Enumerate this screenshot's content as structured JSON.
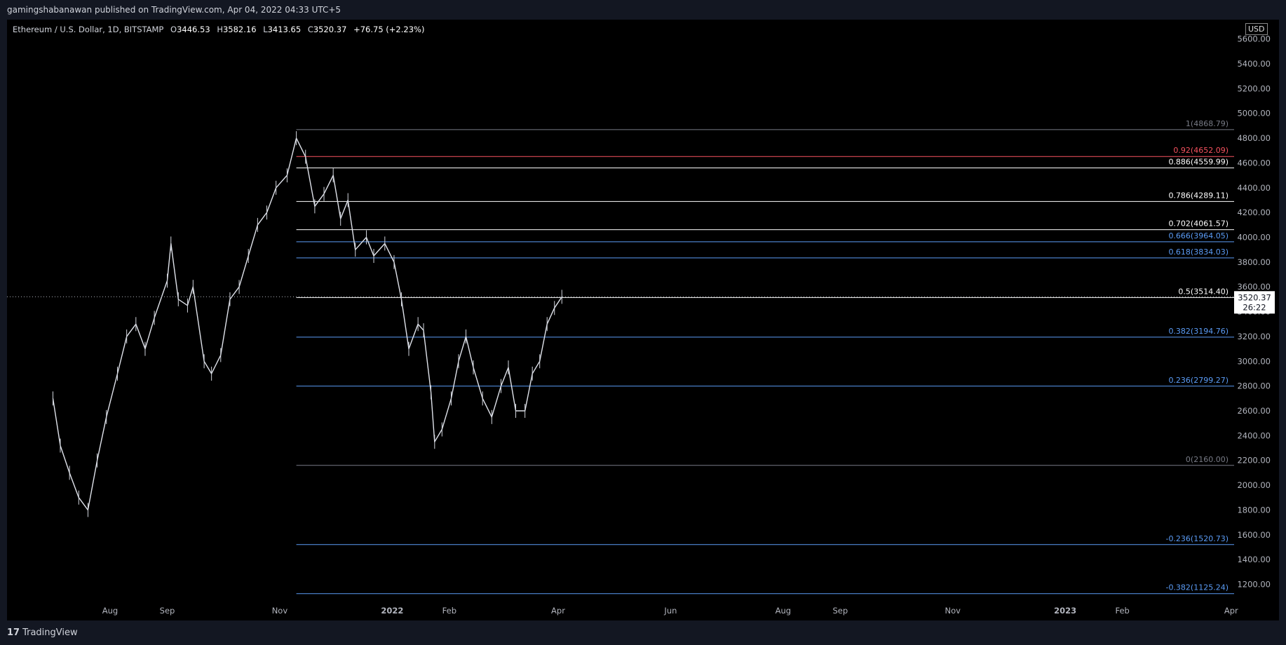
{
  "header": {
    "published": "gamingshabanawan published on TradingView.com, Apr 04, 2022 04:33 UTC+5"
  },
  "legend": {
    "symbol": "Ethereum / U.S. Dollar, 1D, BITSTAMP",
    "open_label": "O",
    "open": "3446.53",
    "high_label": "H",
    "high": "3582.16",
    "low_label": "L",
    "low": "3413.65",
    "close_label": "C",
    "close": "3520.37",
    "change": "+76.75 (+2.23%)"
  },
  "currency_button": "USD",
  "footer": {
    "logo_mark": "17",
    "brand": "TradingView"
  },
  "chart_data": {
    "type": "line",
    "price_axis": {
      "ylim": [
        1050,
        5700
      ],
      "ticks": [
        "1200.00",
        "1400.00",
        "1600.00",
        "1800.00",
        "2000.00",
        "2200.00",
        "2400.00",
        "2600.00",
        "2800.00",
        "3000.00",
        "3200.00",
        "3400.00",
        "3600.00",
        "3800.00",
        "4000.00",
        "4200.00",
        "4400.00",
        "4600.00",
        "4800.00",
        "5000.00",
        "5200.00",
        "5400.00",
        "5600.00"
      ]
    },
    "time_axis": {
      "ticks": [
        {
          "label": "Aug",
          "x": "2021-08-01"
        },
        {
          "label": "Sep",
          "x": "2021-09-01"
        },
        {
          "label": "Nov",
          "x": "2021-11-01"
        },
        {
          "label": "2022",
          "x": "2022-01-01"
        },
        {
          "label": "Feb",
          "x": "2022-02-01"
        },
        {
          "label": "Apr",
          "x": "2022-04-01"
        },
        {
          "label": "Jun",
          "x": "2022-06-01"
        },
        {
          "label": "Aug",
          "x": "2022-08-01"
        },
        {
          "label": "Sep",
          "x": "2022-09-01"
        },
        {
          "label": "Nov",
          "x": "2022-11-01"
        },
        {
          "label": "2023",
          "x": "2023-01-01"
        },
        {
          "label": "Feb",
          "x": "2023-02-01"
        },
        {
          "label": "Apr",
          "x": "2023-04-01"
        }
      ]
    },
    "fib_start": "2021-11-10",
    "fib_levels": [
      {
        "label": "1(4868.79)",
        "ratio": 1,
        "price": 4868.79,
        "color": "#787b86"
      },
      {
        "label": "0.92(4652.09)",
        "ratio": 0.92,
        "price": 4652.09,
        "color": "#f7525f"
      },
      {
        "label": "0.886(4559.99)",
        "ratio": 0.886,
        "price": 4559.99,
        "color": "#ffffff"
      },
      {
        "label": "0.786(4289.11)",
        "ratio": 0.786,
        "price": 4289.11,
        "color": "#ffffff"
      },
      {
        "label": "0.702(4061.57)",
        "ratio": 0.702,
        "price": 4061.57,
        "color": "#ffffff"
      },
      {
        "label": "0.666(3964.05)",
        "ratio": 0.666,
        "price": 3964.05,
        "color": "#5b9cf6"
      },
      {
        "label": "0.618(3834.03)",
        "ratio": 0.618,
        "price": 3834.03,
        "color": "#5b9cf6"
      },
      {
        "label": "0.5(3514.40)",
        "ratio": 0.5,
        "price": 3514.4,
        "color": "#ffffff"
      },
      {
        "label": "0.382(3194.76)",
        "ratio": 0.382,
        "price": 3194.76,
        "color": "#5b9cf6"
      },
      {
        "label": "0.236(2799.27)",
        "ratio": 0.236,
        "price": 2799.27,
        "color": "#5b9cf6"
      },
      {
        "label": "0(2160.00)",
        "ratio": 0,
        "price": 2160.0,
        "color": "#787b86"
      },
      {
        "label": "-0.236(1520.73)",
        "ratio": -0.236,
        "price": 1520.73,
        "color": "#5b9cf6"
      },
      {
        "label": "-0.382(1125.24)",
        "ratio": -0.382,
        "price": 1125.24,
        "color": "#5b9cf6"
      }
    ],
    "last_price": {
      "value": 3520.37,
      "label": "3520.37",
      "countdown": "26:22"
    },
    "series": [
      {
        "x": [
          "2021-07-01",
          "2021-07-05",
          "2021-07-10",
          "2021-07-15",
          "2021-07-20",
          "2021-07-25",
          "2021-07-30",
          "2021-08-05",
          "2021-08-10",
          "2021-08-15",
          "2021-08-20",
          "2021-08-25",
          "2021-09-01",
          "2021-09-03",
          "2021-09-07",
          "2021-09-12",
          "2021-09-15",
          "2021-09-21",
          "2021-09-25",
          "2021-09-30",
          "2021-10-05",
          "2021-10-10",
          "2021-10-15",
          "2021-10-20",
          "2021-10-25",
          "2021-10-30",
          "2021-11-05",
          "2021-11-10",
          "2021-11-15",
          "2021-11-20",
          "2021-11-25",
          "2021-11-30",
          "2021-12-04",
          "2021-12-08",
          "2021-12-12",
          "2021-12-18",
          "2021-12-22",
          "2021-12-28",
          "2022-01-02",
          "2022-01-06",
          "2022-01-10",
          "2022-01-15",
          "2022-01-18",
          "2022-01-22",
          "2022-01-24",
          "2022-01-28",
          "2022-02-02",
          "2022-02-06",
          "2022-02-10",
          "2022-02-14",
          "2022-02-19",
          "2022-02-24",
          "2022-03-01",
          "2022-03-05",
          "2022-03-09",
          "2022-03-14",
          "2022-03-18",
          "2022-03-22",
          "2022-03-26",
          "2022-03-30",
          "2022-04-03"
        ],
        "y": [
          2700,
          2320,
          2100,
          1900,
          1800,
          2200,
          2550,
          2900,
          3200,
          3300,
          3100,
          3350,
          3650,
          3950,
          3500,
          3450,
          3600,
          3000,
          2900,
          3050,
          3500,
          3600,
          3850,
          4100,
          4200,
          4400,
          4500,
          4800,
          4650,
          4250,
          4350,
          4500,
          4150,
          4300,
          3900,
          4000,
          3850,
          3950,
          3800,
          3500,
          3100,
          3300,
          3250,
          2750,
          2350,
          2450,
          2700,
          3000,
          3200,
          2950,
          2700,
          2550,
          2800,
          2950,
          2600,
          2600,
          2900,
          3000,
          3300,
          3430,
          3520
        ]
      }
    ]
  }
}
